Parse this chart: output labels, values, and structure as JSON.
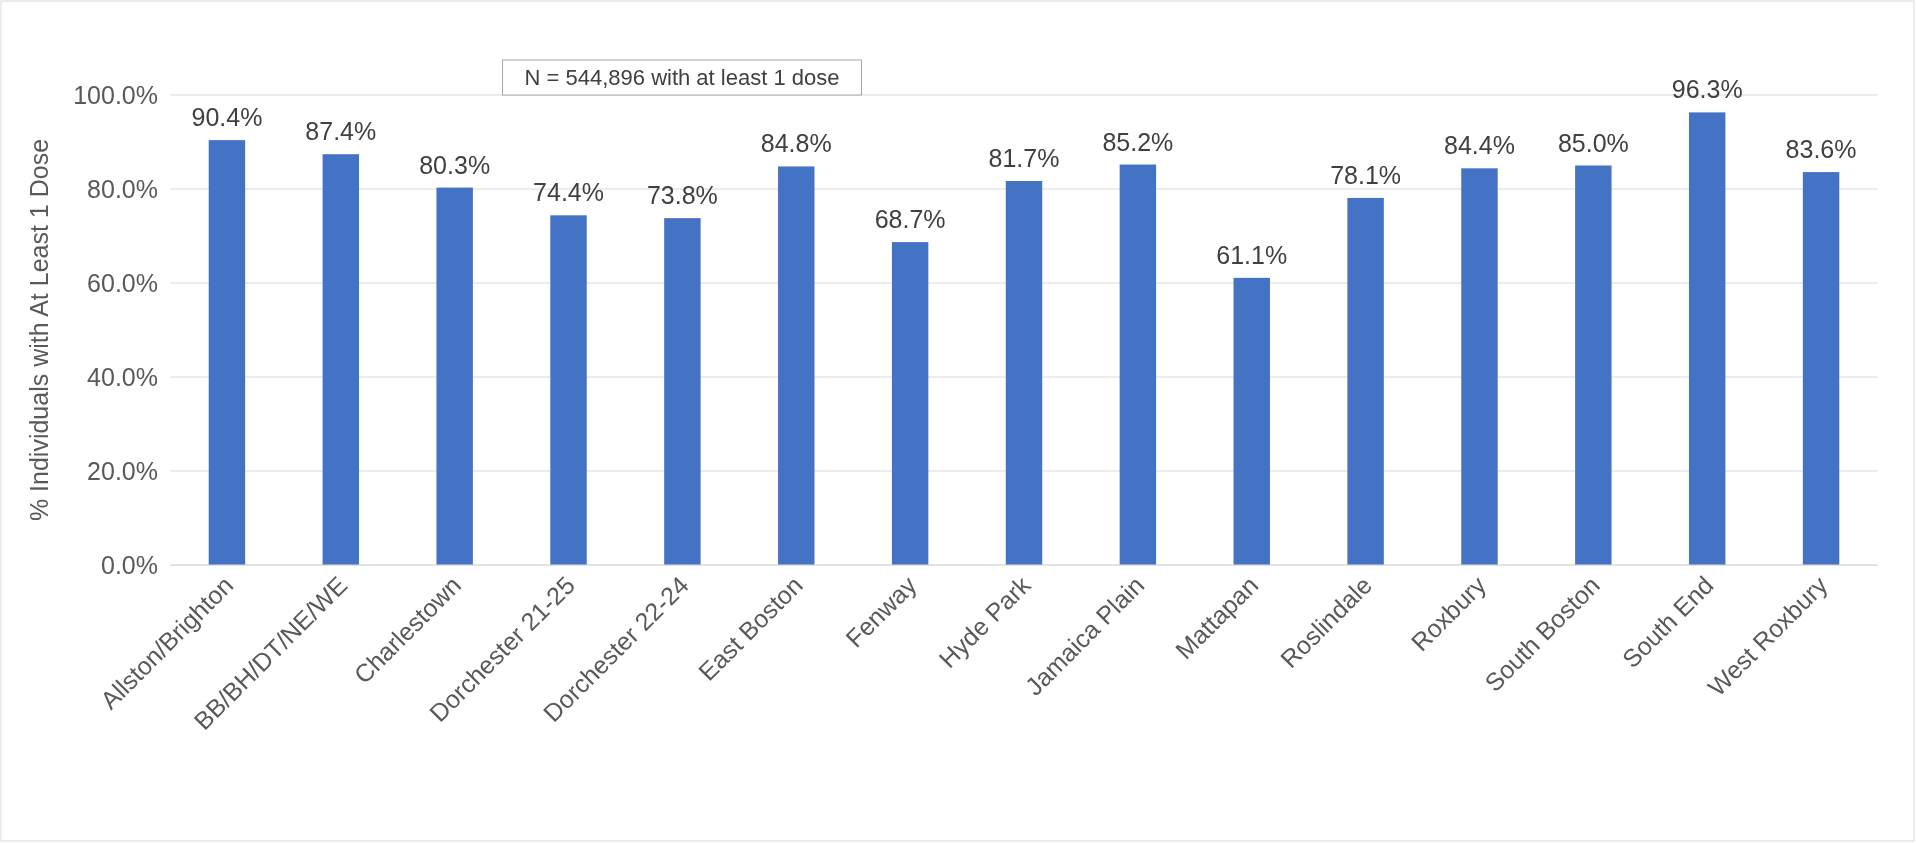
{
  "chart_data": {
    "type": "bar",
    "ylabel": "% Individuals with At Least 1 Dose",
    "categories": [
      "Allston/Brighton",
      "BB/BH/DT/NE/WE",
      "Charlestown",
      "Dorchester 21-25",
      "Dorchester 22-24",
      "East Boston",
      "Fenway",
      "Hyde Park",
      "Jamaica Plain",
      "Mattapan",
      "Roslindale",
      "Roxbury",
      "South Boston",
      "South End",
      "West Roxbury"
    ],
    "values": [
      90.4,
      87.4,
      80.3,
      74.4,
      73.8,
      84.8,
      68.7,
      81.7,
      85.2,
      61.1,
      78.1,
      84.4,
      85.0,
      96.3,
      83.6
    ],
    "value_labels": [
      "90.4%",
      "87.4%",
      "80.3%",
      "74.4%",
      "73.8%",
      "84.8%",
      "68.7%",
      "81.7%",
      "85.2%",
      "61.1%",
      "78.1%",
      "84.4%",
      "85.0%",
      "96.3%",
      "83.6%"
    ],
    "color": "#4472c4",
    "ylim": [
      0,
      100
    ],
    "yticks": [
      {
        "value": 0,
        "label": "0.0%"
      },
      {
        "value": 20,
        "label": "20.0%"
      },
      {
        "value": 40,
        "label": "40.0%"
      },
      {
        "value": 60,
        "label": "60.0%"
      },
      {
        "value": 80,
        "label": "80.0%"
      },
      {
        "value": 100,
        "label": "100.0%"
      }
    ],
    "grid": "y",
    "annotations": [
      "N = 544,896 with at least 1 dose"
    ]
  }
}
